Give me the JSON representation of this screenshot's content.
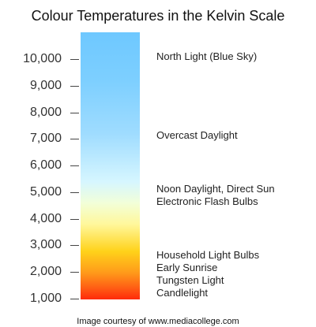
{
  "title": "Colour Temperatures in the Kelvin Scale",
  "scale": {
    "unit": "Kelvin",
    "ticks": [
      {
        "value": 10000,
        "label": "10,000"
      },
      {
        "value": 9000,
        "label": "9,000"
      },
      {
        "value": 8000,
        "label": "8,000"
      },
      {
        "value": 7000,
        "label": "7,000"
      },
      {
        "value": 6000,
        "label": "6,000"
      },
      {
        "value": 5000,
        "label": "5,000"
      },
      {
        "value": 4000,
        "label": "4,000"
      },
      {
        "value": 3000,
        "label": "3,000"
      },
      {
        "value": 2000,
        "label": "2,000"
      },
      {
        "value": 1000,
        "label": "1,000"
      }
    ],
    "gradient_colors": [
      "#6ec8ff",
      "#9fdcff",
      "#d6f6ff",
      "#fff79a",
      "#ffd21a",
      "#ff9a1a",
      "#ff2a0a"
    ]
  },
  "annotations": [
    {
      "text": "North Light (Blue Sky)",
      "kelvin": 10000
    },
    {
      "text": "Overcast Daylight",
      "kelvin": 7000
    },
    {
      "text": "Noon Daylight, Direct Sun",
      "kelvin": 5000
    },
    {
      "text": "Electronic Flash Bulbs",
      "kelvin": 4600
    },
    {
      "text": "Household Light Bulbs",
      "kelvin": 2500
    },
    {
      "text": "Early Sunrise",
      "kelvin": 2000
    },
    {
      "text": "Tungsten Light",
      "kelvin": 1600
    },
    {
      "text": "Candlelight",
      "kelvin": 1000
    }
  ],
  "credit": "Image courtesy of www.mediacollege.com"
}
